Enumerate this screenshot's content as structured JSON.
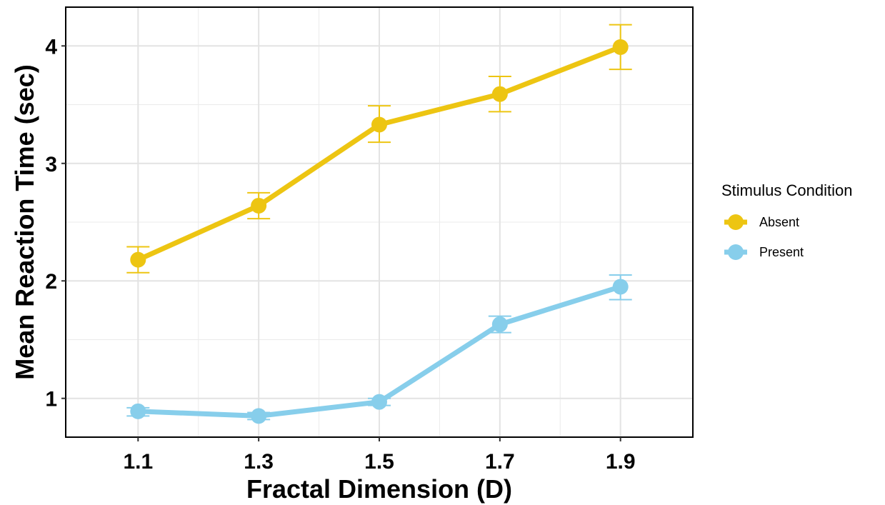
{
  "chart_data": {
    "type": "line",
    "title": "",
    "xlabel": "Fractal Dimension (D)",
    "ylabel": "Mean Reaction Time (sec)",
    "x": [
      1.1,
      1.3,
      1.5,
      1.7,
      1.9
    ],
    "x_tick_labels": [
      "1.1",
      "1.3",
      "1.5",
      "1.7",
      "1.9"
    ],
    "y_ticks": [
      1,
      2,
      3,
      4
    ],
    "y_tick_labels": [
      "1",
      "2",
      "3",
      "4"
    ],
    "xlim": [
      0.98,
      2.02
    ],
    "ylim": [
      0.67,
      4.33
    ],
    "grid": true,
    "legend": {
      "title": "Stimulus Condition",
      "placement": "right"
    },
    "series": [
      {
        "name": "Absent",
        "color": "#EDC512",
        "values": [
          2.18,
          2.64,
          3.33,
          3.59,
          3.99
        ],
        "error_low": [
          2.07,
          2.53,
          3.18,
          3.44,
          3.8
        ],
        "error_high": [
          2.29,
          2.75,
          3.49,
          3.74,
          4.18
        ]
      },
      {
        "name": "Present",
        "color": "#87CEEB",
        "values": [
          0.89,
          0.85,
          0.97,
          1.63,
          1.95
        ],
        "error_low": [
          0.85,
          0.82,
          0.94,
          1.56,
          1.84
        ],
        "error_high": [
          0.92,
          0.88,
          1.0,
          1.7,
          2.05
        ]
      }
    ]
  }
}
